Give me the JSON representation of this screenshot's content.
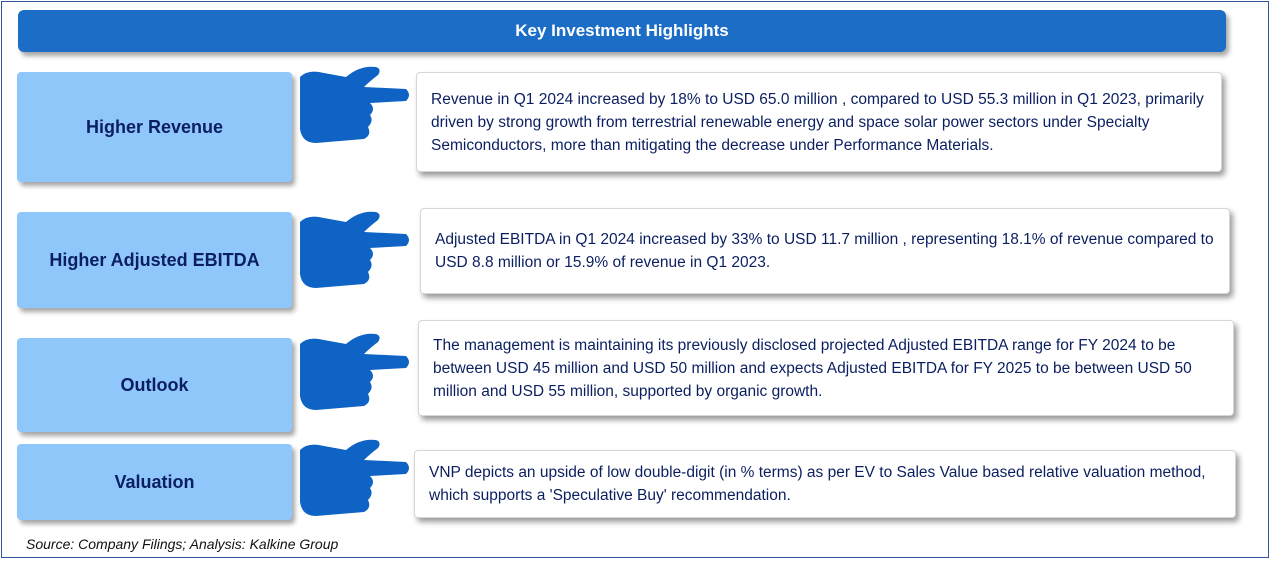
{
  "header": {
    "title": "Key Investment Highlights"
  },
  "rows": [
    {
      "label": "Higher Revenue",
      "description": "Revenue in Q1 2024 increased by 18% to USD 65.0 million , compared to USD 55.3 million in Q1 2023, primarily driven by strong growth from terrestrial renewable energy and space solar power sectors under Specialty Semiconductors, more than mitigating the decrease under Performance Materials."
    },
    {
      "label": "Higher Adjusted EBITDA",
      "description": " Adjusted EBITDA in Q1 2024 increased by 33% to USD 11.7 million , representing 18.1% of revenue compared to USD 8.8 million or 15.9% of revenue in Q1 2023."
    },
    {
      "label": "Outlook",
      "description": "The management is maintaining its previously disclosed projected Adjusted EBITDA range for FY 2024 to be between USD 45 million and USD 50 million and expects Adjusted EBITDA for FY 2025 to be between USD 50 million and USD 55 million, supported by organic growth."
    },
    {
      "label": "Valuation",
      "description": "VNP depicts an upside of low double-digit (in % terms) as per EV to Sales Value based relative valuation method, which supports a 'Speculative Buy' recommendation."
    }
  ],
  "source": "Source: Company Filings; Analysis: Kalkine Group",
  "icons": {
    "pointer": "pointing-hand-icon"
  },
  "colors": {
    "header_bg": "#1c6dc6",
    "label_bg": "#8fc7fb",
    "text": "#0b1f60",
    "hand": "#0e63c4"
  }
}
